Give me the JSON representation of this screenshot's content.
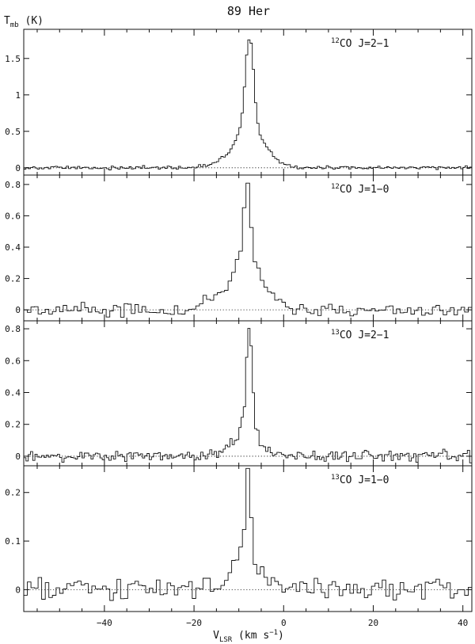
{
  "chart_data": {
    "type": "line",
    "title": "89 Her",
    "ylabel_main": "T",
    "ylabel_sub": "mb",
    "ylabel_unit": " (K)",
    "xlabel_main": "V",
    "xlabel_sub": "LSR",
    "xlabel_unit_pre": " (km s",
    "xlabel_unit_sup": "−1",
    "xlabel_unit_post": ")",
    "xlim": [
      -58,
      42
    ],
    "x_ticks": [
      -40,
      -20,
      0,
      20,
      40
    ],
    "x_tick_labels": [
      "−40",
      "−20",
      "0",
      "20",
      "40"
    ],
    "line_style": "histogram",
    "baseline": "dotted zero line",
    "panels": [
      {
        "label_sup": "12",
        "label": "CO J=2−1",
        "ylim": [
          -0.1,
          1.9
        ],
        "y_ticks": [
          0,
          0.5,
          1,
          1.5
        ],
        "y_tick_labels": [
          "0",
          "0.5",
          "1",
          "1.5"
        ],
        "channel_width": 0.5,
        "x": [
          -20,
          -17,
          -15,
          -13,
          -12,
          -11,
          -10.5,
          -10,
          -9.5,
          -9,
          -8.5,
          -8,
          -7.5,
          -7,
          -6.5,
          -6,
          -5.5,
          -5,
          -4,
          -3,
          -2,
          -1,
          0,
          1,
          2,
          4
        ],
        "y": [
          0.01,
          0.03,
          0.08,
          0.16,
          0.24,
          0.34,
          0.42,
          0.5,
          0.62,
          0.9,
          1.32,
          1.76,
          1.8,
          1.62,
          1.1,
          0.7,
          0.5,
          0.4,
          0.3,
          0.22,
          0.14,
          0.09,
          0.06,
          0.04,
          0.02,
          0.0
        ],
        "noise_rms": 0.012
      },
      {
        "label_sup": "12",
        "label": "CO J=1−0",
        "ylim": [
          -0.07,
          0.86
        ],
        "y_ticks": [
          0,
          0.2,
          0.4,
          0.6,
          0.8
        ],
        "y_tick_labels": [
          "0",
          "0.2",
          "0.4",
          "0.6",
          "0.8"
        ],
        "channel_width": 0.8,
        "x": [
          -20,
          -18,
          -16,
          -14,
          -13,
          -12,
          -11,
          -10,
          -9,
          -8.5,
          -8,
          -7.5,
          -7,
          -6.5,
          -6,
          -5,
          -4,
          -3,
          -2,
          -1,
          0,
          1,
          2,
          4
        ],
        "y": [
          0.02,
          0.04,
          0.06,
          0.1,
          0.13,
          0.18,
          0.26,
          0.33,
          0.45,
          0.83,
          0.82,
          0.6,
          0.44,
          0.32,
          0.3,
          0.22,
          0.15,
          0.13,
          0.09,
          0.06,
          0.05,
          0.04,
          0.03,
          0.0
        ],
        "noise_rms": 0.022
      },
      {
        "label_sup": "13",
        "label": "CO J=2−1",
        "ylim": [
          -0.06,
          0.85
        ],
        "y_ticks": [
          0,
          0.2,
          0.4,
          0.6,
          0.8
        ],
        "y_tick_labels": [
          "0",
          "0.2",
          "0.4",
          "0.6",
          "0.8"
        ],
        "channel_width": 0.5,
        "x": [
          -16,
          -14,
          -13,
          -12,
          -11,
          -10,
          -9,
          -8.5,
          -8,
          -7.5,
          -7,
          -6.5,
          -6,
          -5,
          -4,
          -3,
          -2,
          0
        ],
        "y": [
          0.0,
          0.02,
          0.04,
          0.07,
          0.1,
          0.15,
          0.24,
          0.4,
          0.8,
          0.81,
          0.58,
          0.25,
          0.15,
          0.08,
          0.05,
          0.03,
          0.01,
          0.0
        ],
        "noise_rms": 0.018
      },
      {
        "label_sup": "13",
        "label": "CO J=1−0",
        "ylim": [
          -0.045,
          0.255
        ],
        "y_ticks": [
          0,
          0.1,
          0.2
        ],
        "y_tick_labels": [
          "0",
          "0.1",
          "0.2"
        ],
        "channel_width": 0.8,
        "x": [
          -16,
          -14,
          -12,
          -11,
          -10,
          -9,
          -8.5,
          -8,
          -7.5,
          -7,
          -6.5,
          -6,
          -5,
          -4,
          -3,
          -1,
          2
        ],
        "y": [
          0.0,
          0.01,
          0.02,
          0.04,
          0.06,
          0.11,
          0.17,
          0.24,
          0.2,
          0.11,
          0.07,
          0.05,
          0.03,
          0.03,
          0.02,
          0.01,
          0.0
        ],
        "noise_rms": 0.011
      }
    ]
  }
}
